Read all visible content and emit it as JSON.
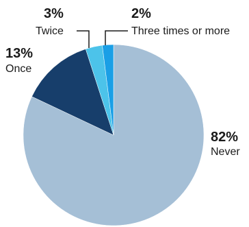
{
  "chart_data": {
    "type": "pie",
    "start_angle_deg": 0,
    "direction": "clockwise",
    "slices": [
      {
        "label": "Never",
        "percent_label": "82%",
        "value": 82,
        "color": "#a5bfd6"
      },
      {
        "label": "Once",
        "percent_label": "13%",
        "value": 13,
        "color": "#173e6b"
      },
      {
        "label": "Twice",
        "percent_label": "3%",
        "value": 3,
        "color": "#4cc3ea"
      },
      {
        "label": "Three times or more",
        "percent_label": "2%",
        "value": 2,
        "color": "#1a9fe6"
      }
    ]
  }
}
